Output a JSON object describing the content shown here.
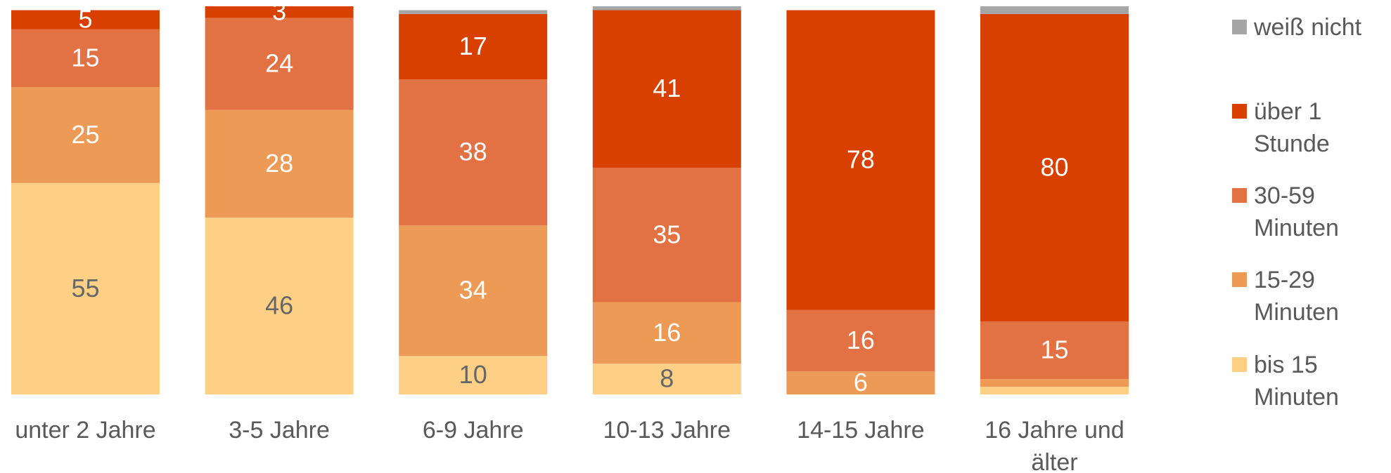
{
  "chart_data": {
    "type": "stacked_bar",
    "categories": [
      "unter 2 Jahre",
      "3-5 Jahre",
      "6-9 Jahre",
      "10-13 Jahre",
      "14-15 Jahre",
      "16 Jahre und älter"
    ],
    "series": [
      {
        "name": "bis 15 Minuten",
        "color": "#fdd085",
        "values": [
          55,
          46,
          10,
          8,
          0,
          2
        ]
      },
      {
        "name": "15-29 Minuten",
        "color": "#ec9a55",
        "values": [
          25,
          28,
          34,
          16,
          6,
          2
        ]
      },
      {
        "name": "30-59 Minuten",
        "color": "#e27243",
        "values": [
          15,
          24,
          38,
          35,
          16,
          15
        ]
      },
      {
        "name": "über 1 Stunde",
        "color": "#d84000",
        "values": [
          5,
          3,
          17,
          41,
          78,
          80
        ]
      },
      {
        "name": "weiß nicht",
        "color": "#a6a6a6",
        "values": [
          0,
          0,
          1,
          1,
          0,
          2
        ]
      }
    ],
    "ylim": [
      0,
      101
    ],
    "legend": "right"
  }
}
